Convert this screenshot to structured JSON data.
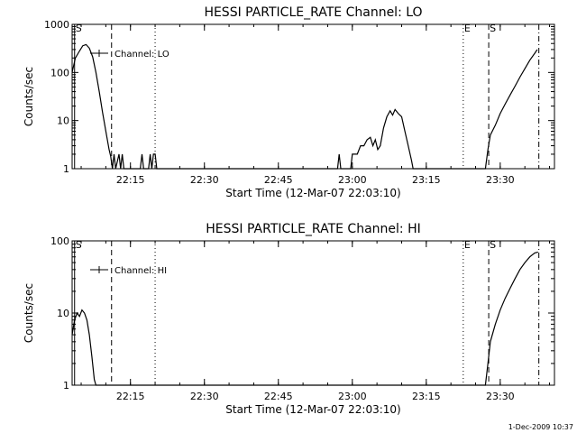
{
  "footer_timestamp": "1-Dec-2009 10:37",
  "chart_data": [
    {
      "type": "line",
      "title": "HESSI PARTICLE_RATE Channel: LO",
      "xlabel": "Start Time (12-Mar-07 22:03:10)",
      "ylabel": "Counts/sec",
      "y_scale": "log",
      "ylim": [
        1,
        1000
      ],
      "xlim": [
        "22:03:10",
        "23:41:00"
      ],
      "x_ticks": [
        "22:15",
        "22:30",
        "22:45",
        "23:00",
        "23:15",
        "23:30"
      ],
      "y_ticks": [
        "1",
        "10",
        "100",
        "1000"
      ],
      "legend": {
        "entry": "Channel: LO",
        "placement": "top-left"
      },
      "markers": [
        {
          "label": "S",
          "time": "22:03:40",
          "style": "solid"
        },
        {
          "label": "",
          "time": "22:11:10",
          "style": "dashed"
        },
        {
          "label": "",
          "time": "22:20:00",
          "style": "dotted"
        },
        {
          "label": "E",
          "time": "23:22:30",
          "style": "dotted"
        },
        {
          "label": "S",
          "time": "23:27:40",
          "style": "dashed"
        },
        {
          "label": "",
          "time": "23:37:50",
          "style": "dashdot"
        }
      ],
      "series": [
        {
          "points": [
            [
              "22:03:10",
              100
            ],
            [
              "22:03:50",
              200
            ],
            [
              "22:04:40",
              280
            ],
            [
              "22:05:20",
              360
            ],
            [
              "22:06:00",
              380
            ],
            [
              "22:06:40",
              320
            ],
            [
              "22:07:20",
              210
            ],
            [
              "22:08:00",
              100
            ],
            [
              "22:08:40",
              40
            ],
            [
              "22:09:20",
              15
            ],
            [
              "22:10:00",
              6
            ],
            [
              "22:10:40",
              2.5
            ],
            [
              "22:11:00",
              1.8
            ],
            [
              "22:11:20",
              1
            ],
            [
              "22:11:40",
              2
            ],
            [
              "22:12:00",
              1
            ],
            [
              "22:12:40",
              2
            ],
            [
              "22:13:00",
              1
            ],
            [
              "22:13:20",
              2
            ],
            [
              "22:13:40",
              1
            ],
            [
              "22:17:00",
              1
            ],
            [
              "22:17:20",
              2
            ],
            [
              "22:17:40",
              1
            ],
            [
              "22:18:40",
              1
            ],
            [
              "22:19:00",
              2
            ],
            [
              "22:19:20",
              1
            ],
            [
              "22:19:40",
              2
            ],
            [
              "22:20:00",
              2
            ],
            [
              "22:20:20",
              1
            ],
            [
              "22:57:00",
              1
            ],
            [
              "22:57:20",
              2
            ],
            [
              "22:57:40",
              1
            ],
            [
              "22:59:40",
              1
            ],
            [
              "23:00:00",
              2
            ],
            [
              "23:01:00",
              2
            ],
            [
              "23:01:40",
              3
            ],
            [
              "23:02:20",
              3
            ],
            [
              "23:03:00",
              4
            ],
            [
              "23:03:40",
              4.5
            ],
            [
              "23:04:10",
              3
            ],
            [
              "23:04:40",
              4
            ],
            [
              "23:05:10",
              2.5
            ],
            [
              "23:05:40",
              3
            ],
            [
              "23:06:20",
              7
            ],
            [
              "23:07:00",
              12
            ],
            [
              "23:07:40",
              16
            ],
            [
              "23:08:10",
              13
            ],
            [
              "23:08:40",
              17
            ],
            [
              "23:09:20",
              14
            ],
            [
              "23:10:00",
              12
            ],
            [
              "23:10:40",
              6
            ],
            [
              "23:11:20",
              3
            ],
            [
              "23:12:00",
              1.5
            ],
            [
              "23:12:20",
              1
            ],
            [
              "23:27:00",
              1
            ],
            [
              "23:27:30",
              2.5
            ],
            [
              "23:28:00",
              5
            ],
            [
              "23:29:00",
              8
            ],
            [
              "23:30:00",
              14
            ],
            [
              "23:31:00",
              22
            ],
            [
              "23:32:00",
              34
            ],
            [
              "23:33:00",
              52
            ],
            [
              "23:34:00",
              80
            ],
            [
              "23:35:00",
              120
            ],
            [
              "23:36:00",
              180
            ],
            [
              "23:37:00",
              250
            ],
            [
              "23:37:30",
              300
            ]
          ]
        }
      ]
    },
    {
      "type": "line",
      "title": "HESSI PARTICLE_RATE Channel: HI",
      "xlabel": "Start Time (12-Mar-07 22:03:10)",
      "ylabel": "Counts/sec",
      "y_scale": "log",
      "ylim": [
        1,
        100
      ],
      "xlim": [
        "22:03:10",
        "23:41:00"
      ],
      "x_ticks": [
        "22:15",
        "22:30",
        "22:45",
        "23:00",
        "23:15",
        "23:30"
      ],
      "y_ticks": [
        "1",
        "10",
        "100"
      ],
      "legend": {
        "entry": "Channel: HI",
        "placement": "top-left"
      },
      "markers": [
        {
          "label": "S",
          "time": "22:03:40",
          "style": "solid"
        },
        {
          "label": "",
          "time": "22:11:10",
          "style": "dashed"
        },
        {
          "label": "",
          "time": "22:20:00",
          "style": "dotted"
        },
        {
          "label": "E",
          "time": "23:22:30",
          "style": "dotted"
        },
        {
          "label": "S",
          "time": "23:27:40",
          "style": "dashed"
        },
        {
          "label": "",
          "time": "23:37:50",
          "style": "dashdot"
        }
      ],
      "series": [
        {
          "points": [
            [
              "22:03:10",
              5
            ],
            [
              "22:03:40",
              8
            ],
            [
              "22:04:10",
              10
            ],
            [
              "22:04:40",
              9
            ],
            [
              "22:05:10",
              11
            ],
            [
              "22:05:40",
              10
            ],
            [
              "22:06:10",
              8
            ],
            [
              "22:06:40",
              5
            ],
            [
              "22:07:10",
              2.5
            ],
            [
              "22:07:40",
              1.2
            ],
            [
              "22:08:00",
              1
            ],
            [
              "23:27:00",
              1
            ],
            [
              "23:27:30",
              2
            ],
            [
              "23:28:00",
              4
            ],
            [
              "23:29:00",
              7
            ],
            [
              "23:30:00",
              11
            ],
            [
              "23:31:00",
              16
            ],
            [
              "23:32:00",
              22
            ],
            [
              "23:33:00",
              30
            ],
            [
              "23:34:00",
              40
            ],
            [
              "23:35:00",
              50
            ],
            [
              "23:36:00",
              60
            ],
            [
              "23:37:00",
              68
            ],
            [
              "23:37:40",
              70
            ]
          ]
        }
      ]
    }
  ]
}
